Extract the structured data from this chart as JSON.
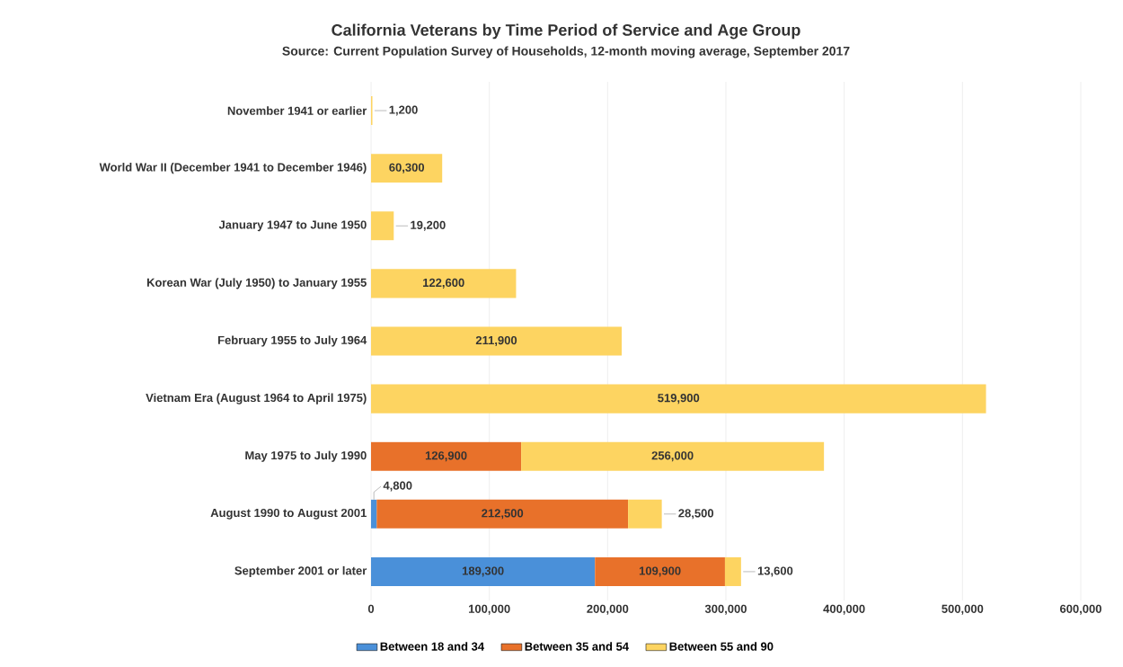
{
  "chart_data": {
    "type": "bar",
    "orientation": "horizontal",
    "stacked": true,
    "title": "California Veterans by Time Period of Service and Age Group",
    "subtitle": "Source: Current Population Survey of Households, 12-month moving average, September 2017",
    "categories": [
      "November 1941 or earlier",
      "World War II (December 1941 to December 1946)",
      "January 1947 to June 1950",
      "Korean War (July 1950) to January 1955",
      "February 1955 to July 1964",
      "Vietnam Era (August 1964 to April 1975)",
      "May 1975 to July 1990",
      "August 1990 to August 2001",
      "September 2001 or later"
    ],
    "series": [
      {
        "name": "Between 18 and 34",
        "color": "#4a90d9",
        "values": [
          null,
          null,
          null,
          null,
          null,
          null,
          null,
          4800,
          189300
        ],
        "value_labels": [
          null,
          null,
          null,
          null,
          null,
          null,
          null,
          "4,800",
          "189,300"
        ]
      },
      {
        "name": "Between 35 and 54",
        "color": "#e8712a",
        "values": [
          null,
          null,
          null,
          null,
          null,
          null,
          126900,
          212500,
          109900
        ],
        "value_labels": [
          null,
          null,
          null,
          null,
          null,
          null,
          "126,900",
          "212,500",
          "109,900"
        ]
      },
      {
        "name": "Between 55 and 90",
        "color": "#fdd461",
        "values": [
          1200,
          60300,
          19200,
          122600,
          211900,
          519900,
          256000,
          28500,
          13600
        ],
        "value_labels": [
          "1,200",
          "60,300",
          "19,200",
          "122,600",
          "211,900",
          "519,900",
          "256,000",
          "28,500",
          "13,600"
        ]
      }
    ],
    "xlim": [
      0,
      600000
    ],
    "xticks": [
      0,
      {
        "value": 100000,
        "label": "100,000"
      },
      {
        "value": 200000,
        "label": "200,000"
      },
      {
        "value": 300000,
        "label": "300,000"
      },
      {
        "value": 400000,
        "label": "400,000"
      },
      {
        "value": 500000,
        "label": "500,000"
      },
      {
        "value": 600000,
        "label": "600,000"
      }
    ],
    "grid": "x",
    "legend": "bottom"
  }
}
